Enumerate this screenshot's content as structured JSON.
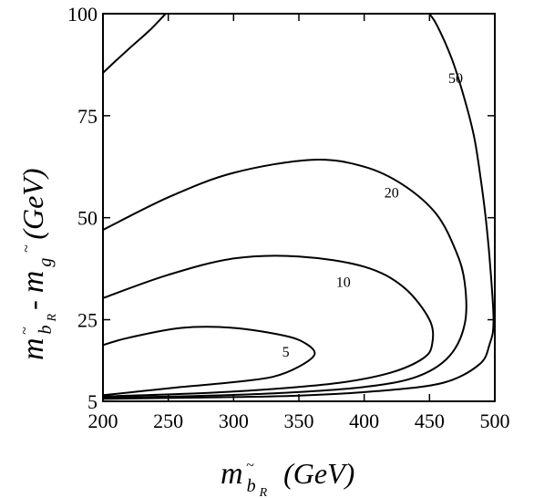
{
  "chart_data": {
    "type": "contour",
    "xlim": [
      200,
      500
    ],
    "ylim": [
      5,
      100
    ],
    "xticks": [
      200,
      250,
      300,
      350,
      400,
      450,
      500
    ],
    "yticks": [
      5,
      25,
      50,
      75,
      100
    ],
    "xlabel": {
      "m": "m",
      "sub_tilde": "~",
      "sub_b": "b",
      "sub_R": "R",
      "unit": "(GeV)"
    },
    "ylabel": {
      "m1": "m",
      "sub1_tilde": "~",
      "sub1_b": "b",
      "sub1_R": "R",
      "minus": " - ",
      "m2": "m",
      "sub2_tilde": "~",
      "sub2_g": "g",
      "unit": "(GeV)"
    },
    "contours": [
      {
        "level": "5",
        "label": "5",
        "points": [
          [
            200,
            6.5
          ],
          [
            230,
            7.5
          ],
          [
            260,
            8.5
          ],
          [
            300,
            9.7
          ],
          [
            330,
            11
          ],
          [
            350,
            13.5
          ],
          [
            362,
            16.5
          ],
          [
            356,
            19
          ],
          [
            340,
            21
          ],
          [
            300,
            23
          ],
          [
            260,
            23
          ],
          [
            220,
            20.6
          ],
          [
            200,
            18.8
          ]
        ]
      },
      {
        "level": "10",
        "label": "10",
        "points": [
          [
            200,
            6.2
          ],
          [
            260,
            6.8
          ],
          [
            320,
            7.8
          ],
          [
            380,
            9.5
          ],
          [
            420,
            12
          ],
          [
            445,
            15.5
          ],
          [
            452,
            19
          ],
          [
            450,
            25
          ],
          [
            430,
            33
          ],
          [
            400,
            38
          ],
          [
            350,
            40.5
          ],
          [
            300,
            40
          ],
          [
            250,
            36
          ],
          [
            200,
            30.3
          ]
        ]
      },
      {
        "level": "20",
        "label": "20",
        "points": [
          [
            200,
            5.9
          ],
          [
            270,
            6.3
          ],
          [
            340,
            7.1
          ],
          [
            400,
            8.5
          ],
          [
            440,
            11
          ],
          [
            465,
            16
          ],
          [
            477,
            24
          ],
          [
            477,
            34
          ],
          [
            470,
            42
          ],
          [
            455,
            51
          ],
          [
            430,
            58
          ],
          [
            400,
            62.5
          ],
          [
            360,
            64.2
          ],
          [
            300,
            61
          ],
          [
            250,
            55
          ],
          [
            200,
            47
          ]
        ]
      },
      {
        "level": "50",
        "label": "50",
        "points": [
          [
            200,
            5.6
          ],
          [
            280,
            5.95
          ],
          [
            350,
            6.4
          ],
          [
            410,
            7.5
          ],
          [
            460,
            9.5
          ],
          [
            488,
            14
          ],
          [
            496,
            19
          ],
          [
            499,
            25
          ],
          [
            496,
            40
          ],
          [
            493,
            50
          ],
          [
            489,
            60
          ],
          [
            484,
            70
          ],
          [
            476,
            80
          ],
          [
            467,
            89
          ],
          [
            456,
            97
          ],
          [
            450,
            100
          ]
        ]
      },
      {
        "level": "50-left",
        "label": "",
        "points": [
          [
            200,
            85.5
          ],
          [
            210,
            88.5
          ],
          [
            222,
            92
          ],
          [
            236,
            96
          ],
          [
            248,
            100
          ]
        ]
      }
    ],
    "label_positions": [
      {
        "label": "5",
        "x": 340,
        "y": 16
      },
      {
        "label": "10",
        "x": 384,
        "y": 33
      },
      {
        "label": "20",
        "x": 421,
        "y": 55
      },
      {
        "label": "50",
        "x": 470,
        "y": 83
      }
    ]
  }
}
